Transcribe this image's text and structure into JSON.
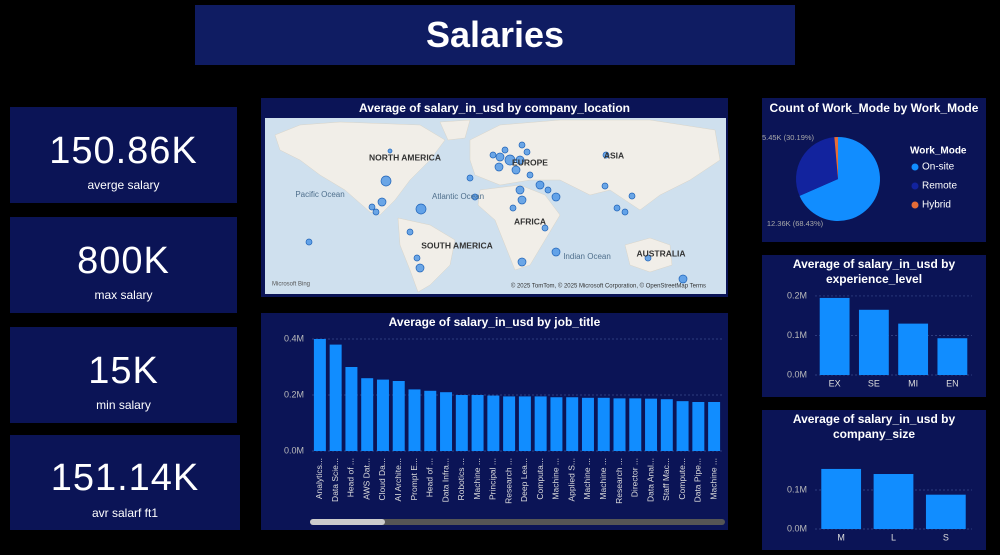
{
  "title": "Salaries",
  "cards": [
    {
      "value": "150.86K",
      "label": "averge salary"
    },
    {
      "value": "800K",
      "label": "max salary"
    },
    {
      "value": "15K",
      "label": "min salary"
    },
    {
      "value": "151.14K",
      "label": "avr salarf ft1"
    }
  ],
  "chart_data": [
    {
      "type": "map",
      "title": "Average of salary_in_usd by company_location",
      "labels": [
        "NORTH AMERICA",
        "EUROPE",
        "ASIA",
        "Pacific Ocean",
        "Atlantic Ocean",
        "AFRICA",
        "SOUTH AMERICA",
        "Indian Ocean",
        "AUSTRALIA"
      ],
      "attribution": "© 2025 TomTom, © 2025 Microsoft Corporation, © OpenStreetMap Terms",
      "logo": "Microsoft Bing"
    },
    {
      "type": "bar",
      "title": "Average of salary_in_usd by job_title",
      "categories": [
        "Analytics...",
        "Data Scie...",
        "Head of ...",
        "AWS Dat...",
        "Cloud Da...",
        "AI Archite...",
        "Prompt E...",
        "Head of ...",
        "Data Infra...",
        "Robotics ...",
        "Machine ...",
        "Principal ...",
        "Research ...",
        "Deep Lea...",
        "Computa...",
        "Machine ...",
        "Applied S...",
        "Machine ...",
        "Machine ...",
        "Research ...",
        "Director ...",
        "Data Anal...",
        "Staff Mac...",
        "Compute...",
        "Data Pipe...",
        "Machine ..."
      ],
      "values": [
        400000,
        380000,
        300000,
        260000,
        255000,
        250000,
        220000,
        215000,
        210000,
        200000,
        200000,
        198000,
        195000,
        195000,
        195000,
        192000,
        192000,
        190000,
        190000,
        188000,
        188000,
        187000,
        185000,
        178000,
        175000,
        175000
      ],
      "color": "#118dff",
      "ylim": [
        0,
        420000
      ],
      "yticks": [
        {
          "value": 0,
          "label": "0.0M"
        },
        {
          "value": 200000,
          "label": "0.2M"
        },
        {
          "value": 400000,
          "label": "0.4M"
        }
      ],
      "grid": true
    },
    {
      "type": "pie",
      "title": "Count of Work_Mode by Work_Mode",
      "legend_title": "Work_Mode",
      "categories": [
        "On-site",
        "Remote",
        "Hybrid"
      ],
      "values": [
        12360,
        5450,
        252
      ],
      "value_labels": [
        "12.36K (68.43%)",
        "5.45K (30.19%)",
        null
      ],
      "colors": [
        "#118dff",
        "#12239e",
        "#e66c37"
      ]
    },
    {
      "type": "bar",
      "title": "Average of salary_in_usd by experience_level",
      "categories": [
        "EX",
        "SE",
        "MI",
        "EN"
      ],
      "values": [
        195000,
        165000,
        130000,
        93000
      ],
      "color": "#118dff",
      "ylim": [
        0,
        210000
      ],
      "yticks": [
        {
          "value": 0,
          "label": "0.0M"
        },
        {
          "value": 100000,
          "label": "0.1M"
        },
        {
          "value": 200000,
          "label": "0.2M"
        }
      ],
      "grid": true
    },
    {
      "type": "bar",
      "title": "Average of salary_in_usd by company_size",
      "categories": [
        "M",
        "L",
        "S"
      ],
      "values": [
        154000,
        141000,
        88000
      ],
      "color": "#118dff",
      "ylim": [
        0,
        160000
      ],
      "yticks": [
        {
          "value": 0,
          "label": "0.0M"
        },
        {
          "value": 100000,
          "label": "0.1M"
        }
      ],
      "grid": true
    }
  ]
}
